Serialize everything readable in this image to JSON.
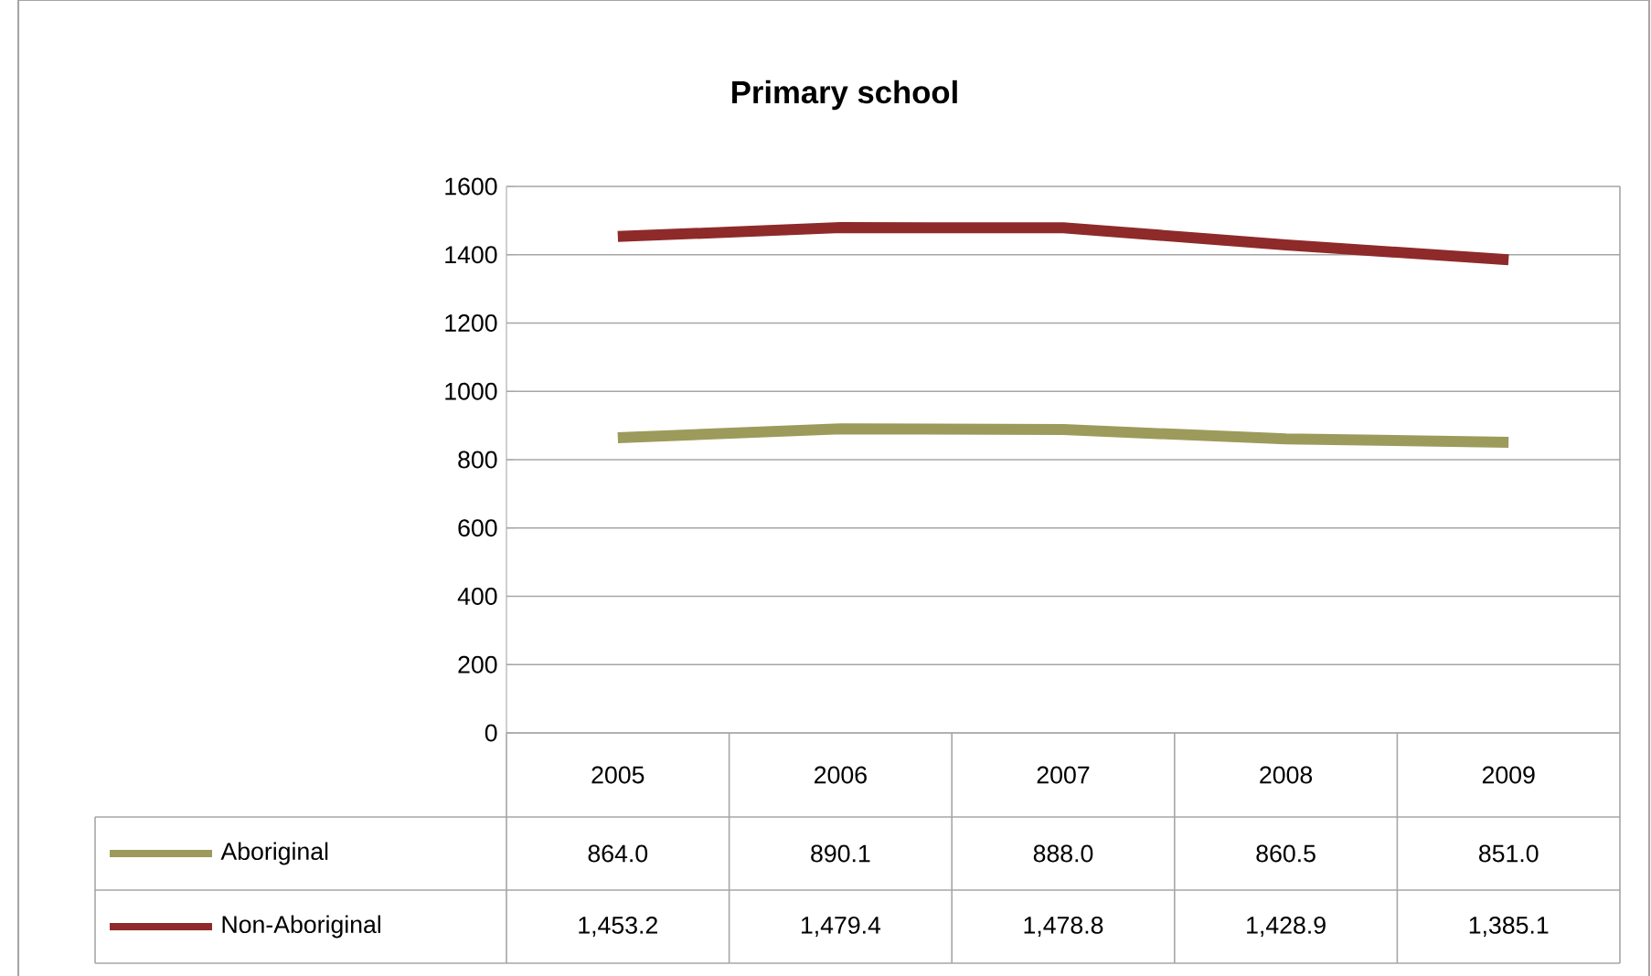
{
  "chart_data": {
    "type": "line",
    "title": "Primary school",
    "categories": [
      "2005",
      "2006",
      "2007",
      "2008",
      "2009"
    ],
    "series": [
      {
        "name": "Aboriginal",
        "color": "#9c9b5b",
        "values": [
          864.0,
          890.1,
          888.0,
          860.5,
          851.0
        ],
        "value_labels": [
          "864.0",
          "890.1",
          "888.0",
          "860.5",
          "851.0"
        ]
      },
      {
        "name": "Non-Aboriginal",
        "color": "#8e2a2a",
        "values": [
          1453.2,
          1479.4,
          1478.8,
          1428.9,
          1385.1
        ],
        "value_labels": [
          "1,453.2",
          "1,479.4",
          "1,478.8",
          "1,428.9",
          "1,385.1"
        ]
      }
    ],
    "ylim": [
      0,
      1600
    ],
    "yticks": [
      0,
      200,
      400,
      600,
      800,
      1000,
      1200,
      1400,
      1600
    ],
    "grid": "y",
    "legend": "bottom"
  }
}
